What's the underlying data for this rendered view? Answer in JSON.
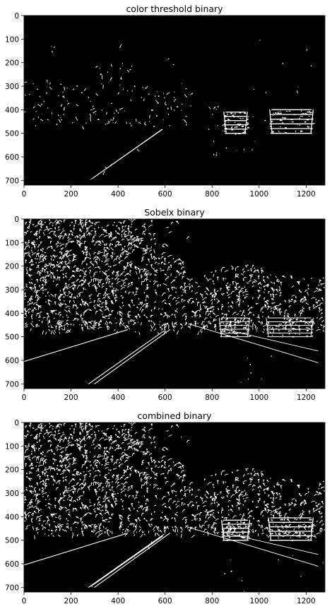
{
  "figure": {
    "background": "#ffffff",
    "image_bg": "#000000",
    "mark_color": "#ffffff"
  },
  "chart_data": [
    {
      "type": "heatmap",
      "title": "color threshold binary",
      "xlabel": "",
      "ylabel": "",
      "xlim": [
        0,
        1280
      ],
      "ylim": [
        720,
        0
      ],
      "xticks": [
        0,
        200,
        400,
        600,
        800,
        1000,
        1200
      ],
      "yticks": [
        0,
        100,
        200,
        300,
        400,
        500,
        600,
        700
      ],
      "colormap": "binary (black = 0, white = 1)",
      "content": "sparse white speckles along tree line; white left lane line from (280,700) to (590,480); white vehicle outlines near x 850-950 and 1050-1230, y 400-500"
    },
    {
      "type": "heatmap",
      "title": "Sobelx binary",
      "xlabel": "",
      "ylabel": "",
      "xlim": [
        0,
        1280
      ],
      "ylim": [
        720,
        0
      ],
      "xticks": [
        0,
        200,
        400,
        600,
        800,
        1000,
        1200
      ],
      "yticks": [
        0,
        100,
        200,
        300,
        400,
        500,
        600,
        700
      ],
      "colormap": "binary (black = 0, white = 1)",
      "content": "dense white edge pixels over trees in upper-left and centre-right; thin white lane edges and road boundary lines; vehicle outlines"
    },
    {
      "type": "heatmap",
      "title": "combined binary",
      "xlabel": "",
      "ylabel": "",
      "xlim": [
        0,
        1280
      ],
      "ylim": [
        720,
        0
      ],
      "xticks": [
        0,
        200,
        400,
        600,
        800,
        1000,
        1200
      ],
      "yticks": [
        0,
        100,
        200,
        300,
        400,
        500,
        600,
        700
      ],
      "colormap": "binary (black = 0, white = 1)",
      "content": "union of color threshold and Sobelx masks: dense tree edges, bold left lane line, vehicle outlines, road edge lines"
    }
  ]
}
